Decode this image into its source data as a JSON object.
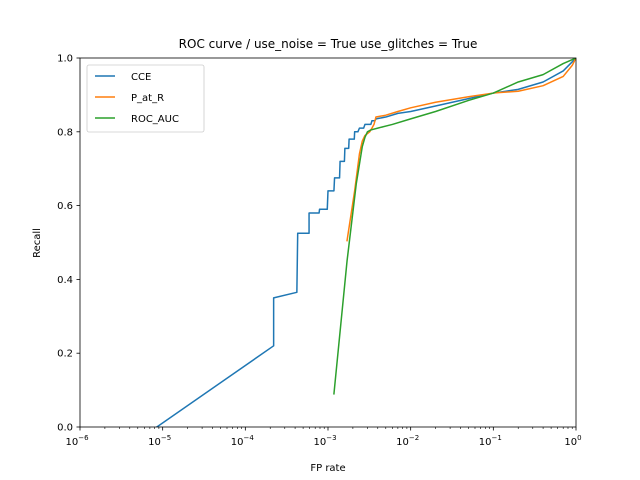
{
  "chart_data": {
    "type": "line",
    "title": "ROC curve / use_noise = True  use_glitches = True",
    "xlabel": "FP rate",
    "ylabel": "Recall",
    "xscale": "log",
    "xlim": [
      1e-06,
      1
    ],
    "ylim": [
      0,
      1
    ],
    "grid": false,
    "legend_position": "upper-left",
    "x_ticks": [
      {
        "value": 1e-06,
        "base": "10",
        "exp": "−6"
      },
      {
        "value": 1e-05,
        "base": "10",
        "exp": "−5"
      },
      {
        "value": 0.0001,
        "base": "10",
        "exp": "−4"
      },
      {
        "value": 0.001,
        "base": "10",
        "exp": "−3"
      },
      {
        "value": 0.01,
        "base": "10",
        "exp": "−2"
      },
      {
        "value": 0.1,
        "base": "10",
        "exp": "−1"
      },
      {
        "value": 1,
        "base": "10",
        "exp": "0"
      }
    ],
    "y_ticks": [
      {
        "value": 0.0,
        "label": "0.0"
      },
      {
        "value": 0.2,
        "label": "0.2"
      },
      {
        "value": 0.4,
        "label": "0.4"
      },
      {
        "value": 0.6,
        "label": "0.6"
      },
      {
        "value": 0.8,
        "label": "0.8"
      },
      {
        "value": 1.0,
        "label": "1.0"
      }
    ],
    "series": [
      {
        "name": "CCE",
        "color": "#1f77b4",
        "points": [
          [
            8.5e-06,
            0.0
          ],
          [
            0.00022,
            0.22
          ],
          [
            0.00022,
            0.35
          ],
          [
            0.00042,
            0.365
          ],
          [
            0.00043,
            0.525
          ],
          [
            0.00059,
            0.525
          ],
          [
            0.00059,
            0.58
          ],
          [
            0.00078,
            0.58
          ],
          [
            0.00079,
            0.59
          ],
          [
            0.00098,
            0.59
          ],
          [
            0.001,
            0.64
          ],
          [
            0.00118,
            0.64
          ],
          [
            0.0012,
            0.675
          ],
          [
            0.00138,
            0.675
          ],
          [
            0.0014,
            0.72
          ],
          [
            0.00158,
            0.72
          ],
          [
            0.0016,
            0.755
          ],
          [
            0.00178,
            0.755
          ],
          [
            0.0018,
            0.78
          ],
          [
            0.00208,
            0.78
          ],
          [
            0.0021,
            0.8
          ],
          [
            0.0023,
            0.8
          ],
          [
            0.0024,
            0.81
          ],
          [
            0.0027,
            0.81
          ],
          [
            0.0028,
            0.82
          ],
          [
            0.0033,
            0.82
          ],
          [
            0.0034,
            0.83
          ],
          [
            0.0037,
            0.83
          ],
          [
            0.0038,
            0.835
          ],
          [
            0.005,
            0.84
          ],
          [
            0.007,
            0.85
          ],
          [
            0.01,
            0.855
          ],
          [
            0.02,
            0.87
          ],
          [
            0.05,
            0.89
          ],
          [
            0.1,
            0.905
          ],
          [
            0.2,
            0.915
          ],
          [
            0.4,
            0.935
          ],
          [
            0.7,
            0.965
          ],
          [
            1.0,
            1.0
          ]
        ]
      },
      {
        "name": "P_at_R",
        "color": "#ff7f0e",
        "points": [
          [
            0.0017,
            0.505
          ],
          [
            0.0021,
            0.64
          ],
          [
            0.0024,
            0.74
          ],
          [
            0.0026,
            0.775
          ],
          [
            0.0028,
            0.79
          ],
          [
            0.0032,
            0.8
          ],
          [
            0.0034,
            0.81
          ],
          [
            0.0036,
            0.82
          ],
          [
            0.0038,
            0.84
          ],
          [
            0.005,
            0.845
          ],
          [
            0.007,
            0.855
          ],
          [
            0.01,
            0.865
          ],
          [
            0.02,
            0.88
          ],
          [
            0.05,
            0.895
          ],
          [
            0.1,
            0.905
          ],
          [
            0.2,
            0.91
          ],
          [
            0.4,
            0.925
          ],
          [
            0.7,
            0.95
          ],
          [
            0.9,
            0.98
          ],
          [
            1.0,
            1.0
          ]
        ]
      },
      {
        "name": "ROC_AUC",
        "color": "#2ca02c",
        "points": [
          [
            0.00118,
            0.09
          ],
          [
            0.0017,
            0.45
          ],
          [
            0.0022,
            0.66
          ],
          [
            0.0026,
            0.76
          ],
          [
            0.0028,
            0.785
          ],
          [
            0.003,
            0.8
          ],
          [
            0.0033,
            0.805
          ],
          [
            0.004,
            0.81
          ],
          [
            0.006,
            0.82
          ],
          [
            0.01,
            0.835
          ],
          [
            0.02,
            0.855
          ],
          [
            0.05,
            0.885
          ],
          [
            0.1,
            0.905
          ],
          [
            0.2,
            0.935
          ],
          [
            0.4,
            0.955
          ],
          [
            0.7,
            0.985
          ],
          [
            1.0,
            1.0
          ]
        ]
      }
    ]
  }
}
